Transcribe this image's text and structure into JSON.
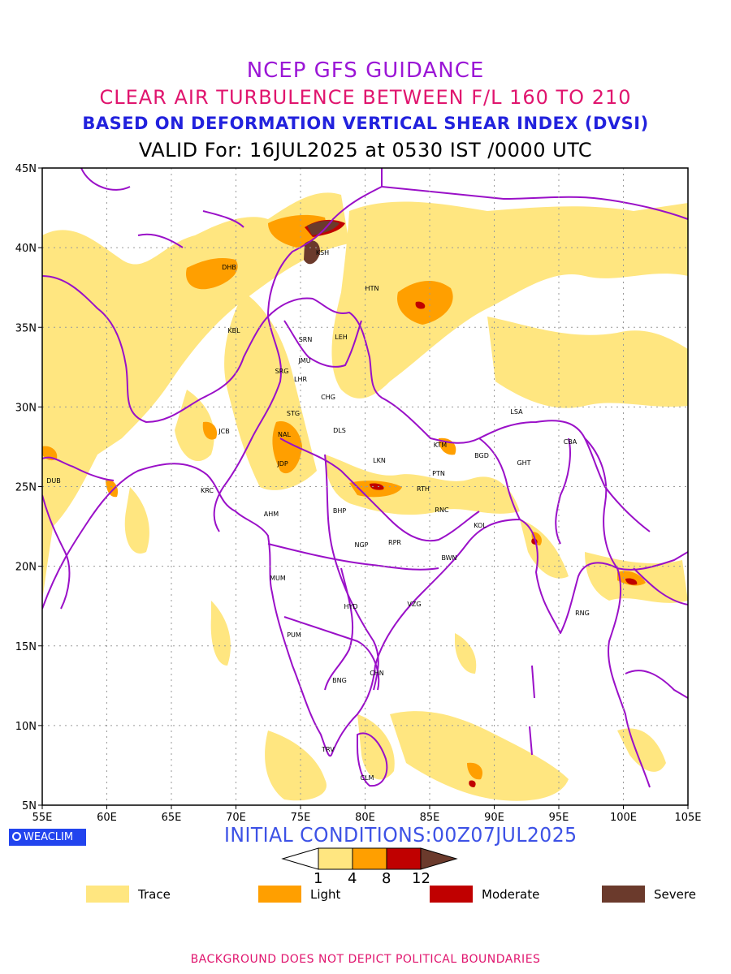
{
  "titles": {
    "line1": "NCEP GFS GUIDANCE",
    "line2": "CLEAR AIR TURBULENCE BETWEEN F/L 160 TO 210",
    "line3": "BASED ON DEFORMATION VERTICAL SHEAR INDEX (DVSI)",
    "line4": "VALID For: 16JUL2025 at 0530 IST /0000 UTC"
  },
  "colors": {
    "line1": "#9b16d6",
    "line2": "#e0156e",
    "line3": "#2222dd",
    "line4": "#000000",
    "initial": "#3d52e6",
    "footer": "#e0156e",
    "boundary": "#9a10c8",
    "trace": "#ffe680",
    "light": "#ff9f00",
    "moderate": "#c00000",
    "severe": "#6b3a2c"
  },
  "axes": {
    "lon": [
      "55E",
      "60E",
      "65E",
      "70E",
      "75E",
      "80E",
      "85E",
      "90E",
      "95E",
      "100E",
      "105E"
    ],
    "lat": [
      "45N",
      "40N",
      "35N",
      "30N",
      "25N",
      "20N",
      "15N",
      "10N",
      "5N"
    ]
  },
  "stations": [
    "DHB",
    "KSH",
    "HTN",
    "KBL",
    "SRN",
    "LEH",
    "JMU",
    "SRG",
    "LHR",
    "CHG",
    "STG",
    "LSA",
    "JCB",
    "DLS",
    "NAL",
    "CBA",
    "KTM",
    "BGD",
    "GHT",
    "LKN",
    "JDP",
    "DUB",
    "PTN",
    "KRC",
    "RTH",
    "BHP",
    "AHM",
    "RNC",
    "KOL",
    "NGP",
    "RPR",
    "BWN",
    "MUM",
    "HYD",
    "VZG",
    "RNG",
    "PUM",
    "CHN",
    "BNG",
    "TRV",
    "CLM"
  ],
  "logo": {
    "text": "WEACLIM",
    "icon": "circle-logo-icon"
  },
  "initial_conditions": "INITIAL CONDITIONS:00Z07JUL2025",
  "colorbar": {
    "ticks": [
      "1",
      "4",
      "8",
      "12"
    ]
  },
  "legend": [
    {
      "label": "Trace",
      "color": "#ffe680"
    },
    {
      "label": "Light",
      "color": "#ff9f00"
    },
    {
      "label": "Moderate",
      "color": "#c00000"
    },
    {
      "label": "Severe",
      "color": "#6b3a2c"
    }
  ],
  "footer": "BACKGROUND DOES NOT DEPICT POLITICAL BOUNDARIES"
}
